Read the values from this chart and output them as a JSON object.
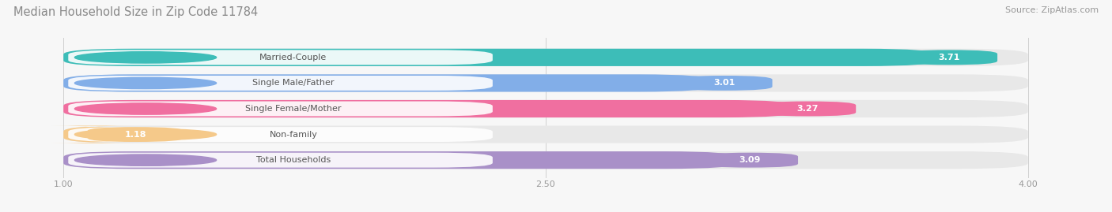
{
  "title": "Median Household Size in Zip Code 11784",
  "source": "Source: ZipAtlas.com",
  "categories": [
    "Married-Couple",
    "Single Male/Father",
    "Single Female/Mother",
    "Non-family",
    "Total Households"
  ],
  "values": [
    3.71,
    3.01,
    3.27,
    1.18,
    3.09
  ],
  "bar_colors": [
    "#3dbdb8",
    "#82aee8",
    "#f06fa0",
    "#f5c98a",
    "#a990c8"
  ],
  "xmin": 0.0,
  "xmax": 4.0,
  "x_axis_min": 1.0,
  "x_axis_max": 4.0,
  "xticks": [
    1.0,
    2.5,
    4.0
  ],
  "bar_height": 0.68,
  "background_color": "#f7f7f7",
  "bar_bg_color": "#e8e8e8",
  "title_fontsize": 10.5,
  "source_fontsize": 8,
  "label_fontsize": 8,
  "value_fontsize": 8,
  "tick_fontsize": 8
}
